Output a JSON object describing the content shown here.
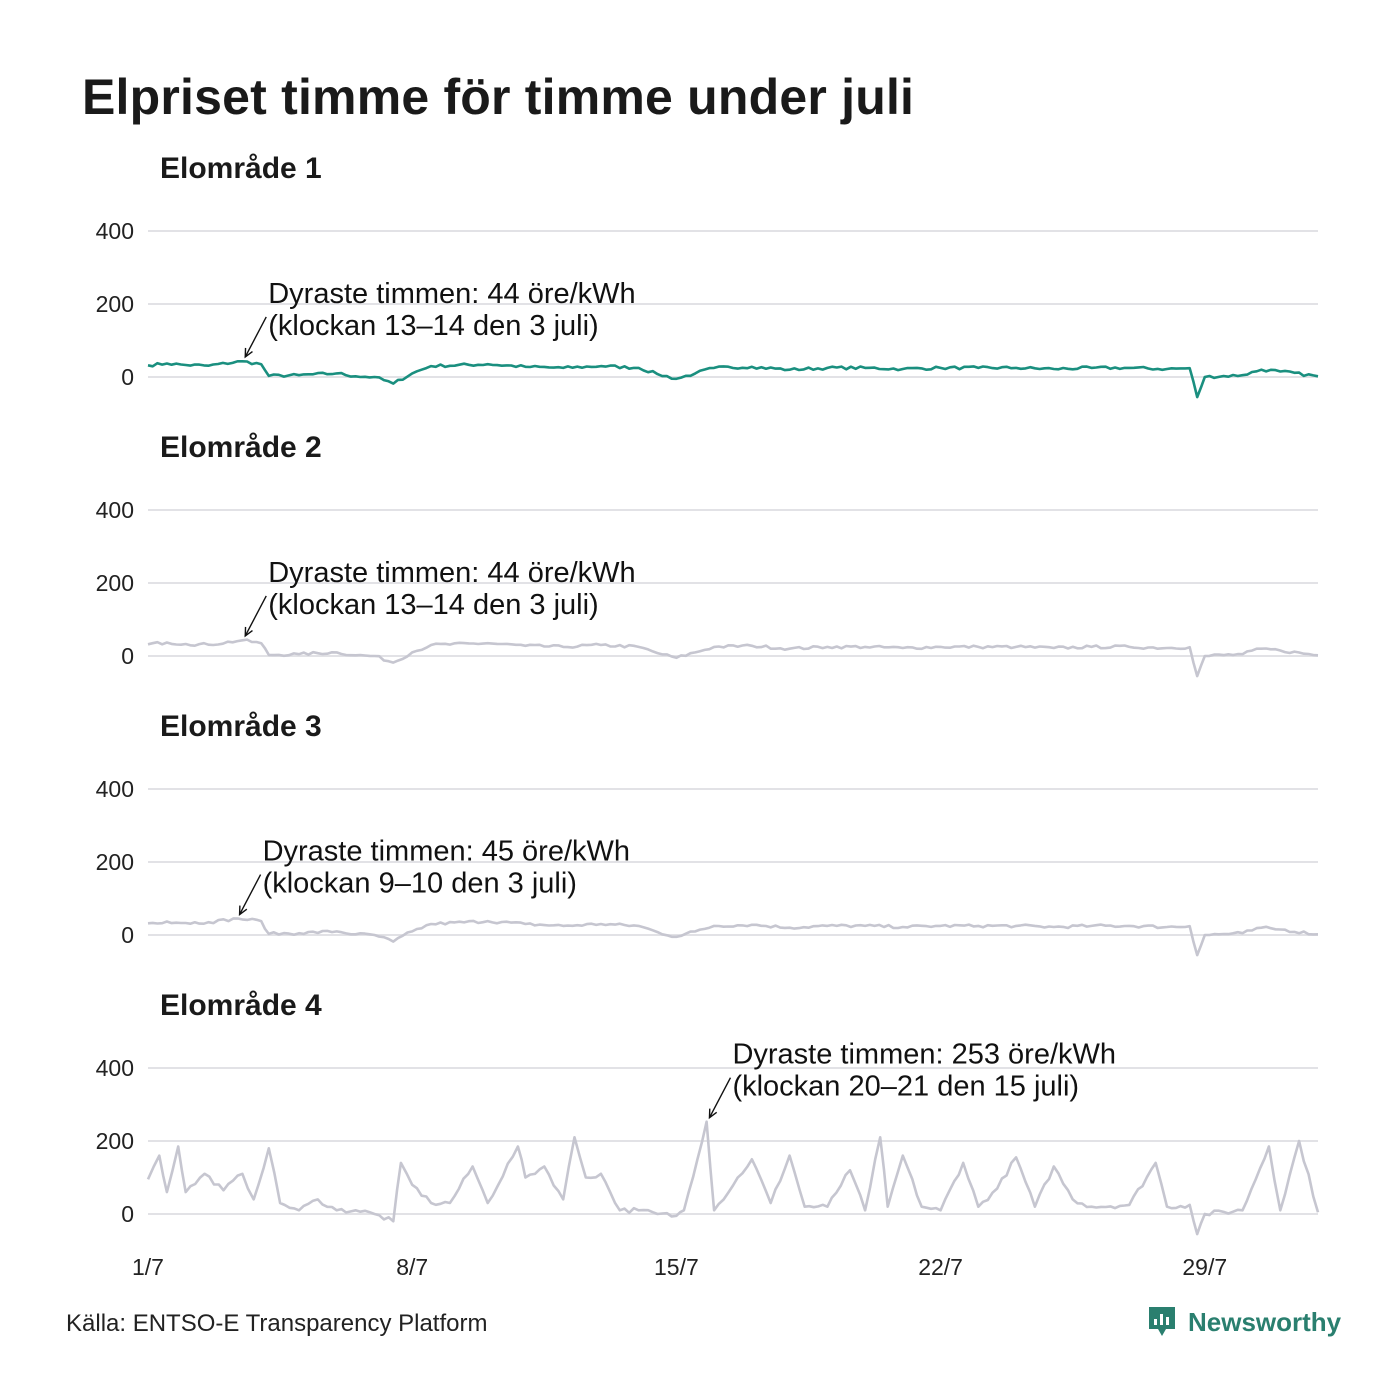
{
  "title": "Elpriset timme för timme under juli",
  "source": "Källa: ENTSO-E Transparency Platform",
  "brand": {
    "name": "Newsworthy",
    "icon": "newsworthy-logo-icon",
    "color": "#2a7f6f"
  },
  "chart_data": [
    {
      "type": "line",
      "title": "Elområde 1",
      "ylim": [
        -50,
        420
      ],
      "yticks": [
        0,
        200,
        400
      ],
      "xticks": [
        "1/7",
        "8/7",
        "15/7",
        "22/7",
        "29/7"
      ],
      "color": "#1a8f7f",
      "anchors": [
        [
          1,
          32
        ],
        [
          1.5,
          37
        ],
        [
          2,
          33
        ],
        [
          2.6,
          31
        ],
        [
          3.5,
          43
        ],
        [
          4,
          35
        ],
        [
          4.2,
          3
        ],
        [
          5,
          5
        ],
        [
          6,
          10
        ],
        [
          6.5,
          2
        ],
        [
          7,
          0
        ],
        [
          7.5,
          -18
        ],
        [
          8,
          10
        ],
        [
          8.5,
          30
        ],
        [
          10,
          35
        ],
        [
          11,
          28
        ],
        [
          12,
          25
        ],
        [
          13,
          30
        ],
        [
          14,
          25
        ],
        [
          14.5,
          8
        ],
        [
          15,
          -5
        ],
        [
          15.5,
          10
        ],
        [
          16,
          25
        ],
        [
          17,
          28
        ],
        [
          18,
          20
        ],
        [
          19,
          25
        ],
        [
          20,
          25
        ],
        [
          21,
          22
        ],
        [
          22,
          25
        ],
        [
          23,
          25
        ],
        [
          24,
          25
        ],
        [
          25,
          22
        ],
        [
          26,
          25
        ],
        [
          27,
          25
        ],
        [
          28,
          22
        ],
        [
          28.6,
          24
        ],
        [
          28.8,
          -55
        ],
        [
          29,
          0
        ],
        [
          30,
          5
        ],
        [
          30.5,
          20
        ],
        [
          31,
          15
        ],
        [
          32,
          2
        ]
      ],
      "annotation": {
        "line1": "Dyraste timmen: 44 öre/kWh",
        "line2": "(klockan 13–14 den 3 juli)",
        "x": 3.55,
        "y": 44
      }
    },
    {
      "type": "line",
      "title": "Elområde 2",
      "ylim": [
        -50,
        420
      ],
      "yticks": [
        0,
        200,
        400
      ],
      "xticks": [
        "1/7",
        "8/7",
        "15/7",
        "22/7",
        "29/7"
      ],
      "color": "#c6c6d0",
      "anchors": [
        [
          1,
          32
        ],
        [
          1.5,
          37
        ],
        [
          2,
          33
        ],
        [
          2.6,
          31
        ],
        [
          3.5,
          43
        ],
        [
          4,
          35
        ],
        [
          4.2,
          3
        ],
        [
          5,
          5
        ],
        [
          6,
          10
        ],
        [
          6.5,
          2
        ],
        [
          7,
          0
        ],
        [
          7.5,
          -18
        ],
        [
          8,
          10
        ],
        [
          8.5,
          30
        ],
        [
          10,
          35
        ],
        [
          11,
          28
        ],
        [
          12,
          25
        ],
        [
          13,
          30
        ],
        [
          14,
          25
        ],
        [
          14.5,
          8
        ],
        [
          15,
          -5
        ],
        [
          15.5,
          10
        ],
        [
          16,
          25
        ],
        [
          17,
          28
        ],
        [
          18,
          20
        ],
        [
          19,
          25
        ],
        [
          20,
          25
        ],
        [
          21,
          22
        ],
        [
          22,
          25
        ],
        [
          23,
          25
        ],
        [
          24,
          25
        ],
        [
          25,
          22
        ],
        [
          26,
          25
        ],
        [
          27,
          25
        ],
        [
          28,
          22
        ],
        [
          28.6,
          24
        ],
        [
          28.8,
          -55
        ],
        [
          29,
          0
        ],
        [
          30,
          5
        ],
        [
          30.5,
          20
        ],
        [
          31,
          15
        ],
        [
          32,
          2
        ]
      ],
      "annotation": {
        "line1": "Dyraste timmen: 44 öre/kWh",
        "line2": "(klockan 13–14 den 3 juli)",
        "x": 3.55,
        "y": 44
      }
    },
    {
      "type": "line",
      "title": "Elområde 3",
      "ylim": [
        -50,
        420
      ],
      "yticks": [
        0,
        200,
        400
      ],
      "xticks": [
        "1/7",
        "8/7",
        "15/7",
        "22/7",
        "29/7"
      ],
      "color": "#c6c6d0",
      "anchors": [
        [
          1,
          32
        ],
        [
          1.5,
          37
        ],
        [
          2,
          33
        ],
        [
          2.6,
          35
        ],
        [
          3.4,
          45
        ],
        [
          4,
          38
        ],
        [
          4.2,
          3
        ],
        [
          5,
          5
        ],
        [
          6,
          10
        ],
        [
          6.5,
          2
        ],
        [
          7,
          0
        ],
        [
          7.5,
          -18
        ],
        [
          8,
          10
        ],
        [
          8.5,
          30
        ],
        [
          10,
          38
        ],
        [
          11,
          30
        ],
        [
          12,
          25
        ],
        [
          13,
          30
        ],
        [
          14,
          25
        ],
        [
          14.5,
          8
        ],
        [
          15,
          -5
        ],
        [
          15.5,
          10
        ],
        [
          16,
          25
        ],
        [
          17,
          28
        ],
        [
          18,
          20
        ],
        [
          19,
          25
        ],
        [
          20,
          25
        ],
        [
          21,
          22
        ],
        [
          22,
          25
        ],
        [
          23,
          25
        ],
        [
          24,
          25
        ],
        [
          25,
          22
        ],
        [
          26,
          25
        ],
        [
          27,
          25
        ],
        [
          28,
          22
        ],
        [
          28.6,
          24
        ],
        [
          28.8,
          -55
        ],
        [
          29,
          0
        ],
        [
          30,
          5
        ],
        [
          30.5,
          20
        ],
        [
          31,
          15
        ],
        [
          32,
          2
        ]
      ],
      "annotation": {
        "line1": "Dyraste timmen: 45 öre/kWh",
        "line2": "(klockan 9–10 den 3 juli)",
        "x": 3.4,
        "y": 45
      }
    },
    {
      "type": "line",
      "title": "Elområde 4",
      "ylim": [
        -50,
        420
      ],
      "yticks": [
        0,
        200,
        400
      ],
      "xticks": [
        "1/7",
        "8/7",
        "15/7",
        "22/7",
        "29/7"
      ],
      "color": "#c6c6d0",
      "anchors": [
        [
          1,
          95
        ],
        [
          1.3,
          160
        ],
        [
          1.5,
          60
        ],
        [
          1.8,
          185
        ],
        [
          2,
          60
        ],
        [
          2.5,
          110
        ],
        [
          3,
          65
        ],
        [
          3.5,
          110
        ],
        [
          3.8,
          40
        ],
        [
          4.2,
          180
        ],
        [
          4.5,
          30
        ],
        [
          5,
          10
        ],
        [
          5.5,
          40
        ],
        [
          6,
          10
        ],
        [
          6.5,
          10
        ],
        [
          7,
          0
        ],
        [
          7.5,
          -20
        ],
        [
          7.7,
          140
        ],
        [
          8,
          80
        ],
        [
          8.5,
          30
        ],
        [
          9,
          30
        ],
        [
          9.6,
          130
        ],
        [
          10,
          30
        ],
        [
          10.8,
          185
        ],
        [
          11,
          100
        ],
        [
          11.5,
          130
        ],
        [
          12,
          40
        ],
        [
          12.3,
          210
        ],
        [
          12.6,
          100
        ],
        [
          13,
          110
        ],
        [
          13.5,
          10
        ],
        [
          14,
          10
        ],
        [
          14.5,
          0
        ],
        [
          15,
          -5
        ],
        [
          15.2,
          10
        ],
        [
          15.8,
          253
        ],
        [
          16,
          10
        ],
        [
          17,
          150
        ],
        [
          17.5,
          30
        ],
        [
          18,
          160
        ],
        [
          18.4,
          20
        ],
        [
          19,
          20
        ],
        [
          19.6,
          120
        ],
        [
          20,
          10
        ],
        [
          20.4,
          210
        ],
        [
          20.6,
          20
        ],
        [
          21,
          160
        ],
        [
          21.5,
          20
        ],
        [
          22,
          10
        ],
        [
          22.6,
          140
        ],
        [
          23,
          20
        ],
        [
          23.5,
          70
        ],
        [
          24,
          155
        ],
        [
          24.5,
          20
        ],
        [
          25,
          130
        ],
        [
          25.5,
          40
        ],
        [
          26,
          20
        ],
        [
          27,
          25
        ],
        [
          27.7,
          140
        ],
        [
          28,
          20
        ],
        [
          28.6,
          25
        ],
        [
          28.8,
          -55
        ],
        [
          29,
          0
        ],
        [
          30,
          10
        ],
        [
          30.7,
          185
        ],
        [
          31,
          10
        ],
        [
          31.5,
          200
        ],
        [
          32,
          5
        ]
      ],
      "annotation": {
        "line1": "Dyraste timmen: 253 öre/kWh",
        "line2": "(klockan 20–21 den 15 juli)",
        "x": 15.85,
        "y": 253
      }
    }
  ]
}
